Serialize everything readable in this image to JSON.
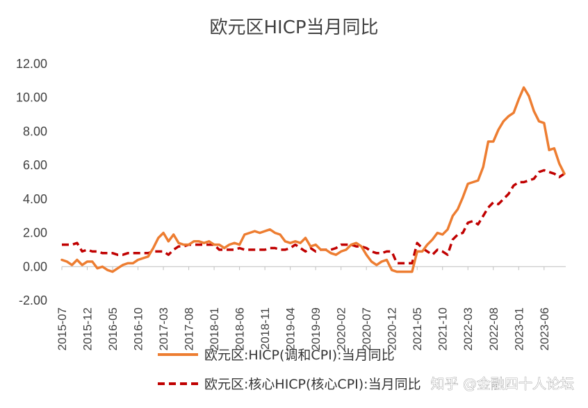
{
  "chart_data": {
    "type": "line",
    "title": "欧元区HICP当月同比",
    "xlabel": "",
    "ylabel": "",
    "ylim": [
      -2,
      12
    ],
    "yticks": [
      "-2.00",
      "0.00",
      "2.00",
      "4.00",
      "6.00",
      "8.00",
      "10.00",
      "12.00"
    ],
    "xticks": [
      "2015-07",
      "2015-12",
      "2016-05",
      "2016-10",
      "2017-03",
      "2017-08",
      "2018-01",
      "2018-06",
      "2018-11",
      "2019-04",
      "2019-09",
      "2020-02",
      "2020-07",
      "2020-12",
      "2021-05",
      "2021-10",
      "2022-03",
      "2022-08",
      "2023-01",
      "2023-06"
    ],
    "grid": false,
    "legend_position": "bottom",
    "x_start": "2015-07",
    "x_end": "2023-06",
    "series": [
      {
        "name": "欧元区:HICP(调和CPI):当月同比",
        "color": "#ED7D31",
        "style": "solid",
        "values": [
          0.4,
          0.3,
          0.1,
          0.4,
          0.1,
          0.3,
          0.3,
          -0.1,
          0.0,
          -0.2,
          -0.3,
          -0.1,
          0.1,
          0.2,
          0.2,
          0.4,
          0.5,
          0.6,
          1.1,
          1.7,
          2.0,
          1.5,
          1.9,
          1.4,
          1.3,
          1.3,
          1.5,
          1.5,
          1.4,
          1.5,
          1.3,
          1.3,
          1.1,
          1.3,
          1.4,
          1.3,
          1.9,
          2.0,
          2.1,
          2.0,
          2.1,
          2.2,
          2.0,
          1.9,
          1.5,
          1.4,
          1.5,
          1.4,
          1.7,
          1.2,
          1.3,
          1.0,
          1.0,
          0.8,
          0.7,
          0.9,
          1.0,
          1.3,
          1.4,
          1.2,
          0.7,
          0.3,
          0.1,
          0.3,
          0.4,
          -0.2,
          -0.3,
          -0.3,
          -0.3,
          -0.3,
          0.9,
          0.9,
          1.3,
          1.6,
          2.0,
          1.9,
          2.2,
          3.0,
          3.4,
          4.1,
          4.9,
          5.0,
          5.1,
          5.9,
          7.4,
          7.4,
          8.1,
          8.6,
          8.9,
          9.1,
          9.9,
          10.6,
          10.1,
          9.2,
          8.6,
          8.5,
          6.9,
          7.0,
          6.1,
          5.5
        ],
        "series_index": 0
      },
      {
        "name": "欧元区:核心HICP(核心CPI):当月同比",
        "color": "#C00000",
        "style": "dashed",
        "values": [
          1.3,
          1.3,
          1.3,
          1.4,
          0.9,
          1.0,
          0.9,
          0.9,
          0.8,
          0.8,
          0.8,
          0.7,
          0.7,
          0.8,
          0.8,
          0.8,
          0.8,
          0.8,
          0.9,
          0.9,
          0.9,
          0.7,
          1.0,
          1.2,
          1.2,
          1.3,
          1.3,
          1.3,
          1.3,
          1.3,
          1.3,
          1.0,
          1.0,
          1.0,
          1.0,
          1.1,
          1.0,
          1.0,
          1.0,
          1.0,
          1.0,
          1.1,
          1.1,
          1.0,
          1.0,
          1.1,
          1.3,
          1.1,
          0.9,
          1.1,
          0.9,
          1.0,
          1.0,
          1.0,
          1.1,
          1.3,
          1.3,
          1.3,
          1.2,
          1.2,
          1.1,
          0.9,
          0.8,
          0.8,
          0.9,
          0.9,
          0.2,
          0.2,
          0.2,
          0.2,
          1.4,
          1.1,
          0.9,
          0.7,
          1.0,
          0.9,
          0.7,
          1.6,
          1.9,
          2.0,
          2.6,
          2.7,
          2.5,
          3.0,
          3.5,
          3.8,
          3.7,
          4.0,
          4.3,
          4.8,
          5.0,
          5.0,
          5.1,
          5.2,
          5.6,
          5.7,
          5.6,
          5.5,
          5.3,
          5.5
        ],
        "series_index": 1
      }
    ]
  },
  "watermark": "知乎 @金融四十人论坛"
}
